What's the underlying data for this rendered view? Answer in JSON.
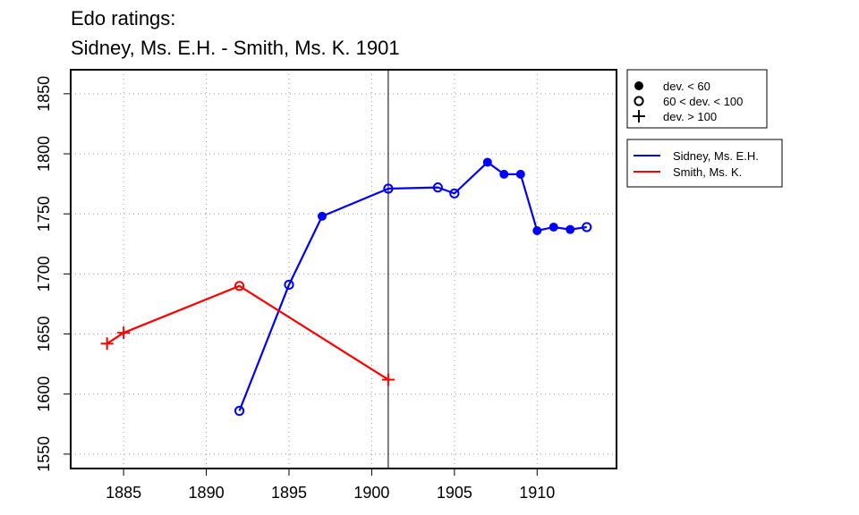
{
  "chart_data": {
    "type": "line",
    "title_line1": "Edo ratings:",
    "title_line2": "Sidney, Ms. E.H. - Smith, Ms. K. 1901",
    "xlabel": "",
    "ylabel": "",
    "xlim": [
      1881.8,
      1914.8
    ],
    "ylim": [
      1538,
      1870
    ],
    "x_ticks": [
      1885,
      1890,
      1895,
      1900,
      1905,
      1910
    ],
    "y_ticks": [
      1550,
      1600,
      1650,
      1700,
      1750,
      1800,
      1850
    ],
    "grid": true,
    "reference_line_x": 1901,
    "marker_legend": [
      {
        "marker": "filled-circle",
        "label": "dev. < 60"
      },
      {
        "marker": "open-circle",
        "label": "60 < dev. < 100"
      },
      {
        "marker": "plus",
        "label": "dev. > 100"
      }
    ],
    "series": [
      {
        "name": "Sidney, Ms. E.H.",
        "color": "#0000ff",
        "points": [
          {
            "x": 1892,
            "y": 1586,
            "marker": "open-circle"
          },
          {
            "x": 1895,
            "y": 1691,
            "marker": "open-circle"
          },
          {
            "x": 1897,
            "y": 1748,
            "marker": "filled-circle"
          },
          {
            "x": 1901,
            "y": 1771,
            "marker": "open-circle"
          },
          {
            "x": 1904,
            "y": 1772,
            "marker": "open-circle"
          },
          {
            "x": 1905,
            "y": 1767,
            "marker": "open-circle"
          },
          {
            "x": 1907,
            "y": 1793,
            "marker": "filled-circle"
          },
          {
            "x": 1908,
            "y": 1783,
            "marker": "filled-circle"
          },
          {
            "x": 1909,
            "y": 1783,
            "marker": "filled-circle"
          },
          {
            "x": 1910,
            "y": 1736,
            "marker": "filled-circle"
          },
          {
            "x": 1911,
            "y": 1739,
            "marker": "filled-circle"
          },
          {
            "x": 1912,
            "y": 1737,
            "marker": "filled-circle"
          },
          {
            "x": 1913,
            "y": 1739,
            "marker": "open-circle"
          }
        ]
      },
      {
        "name": "Smith, Ms. K.",
        "color": "#ff0000",
        "points": [
          {
            "x": 1884,
            "y": 1642,
            "marker": "plus"
          },
          {
            "x": 1885,
            "y": 1651,
            "marker": "plus"
          },
          {
            "x": 1892,
            "y": 1690,
            "marker": "open-circle"
          },
          {
            "x": 1901,
            "y": 1612,
            "marker": "plus"
          }
        ]
      }
    ]
  }
}
